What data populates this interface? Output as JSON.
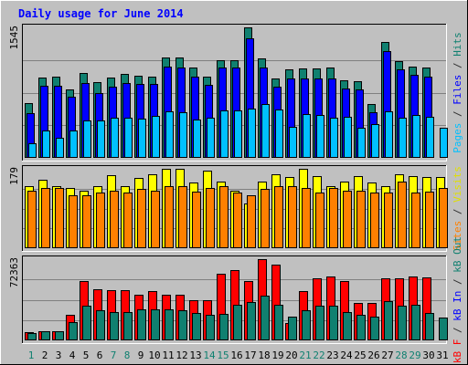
{
  "chart_data": {
    "type": "bar",
    "title": "Daily usage for June 2014",
    "categories": [
      "1",
      "2",
      "3",
      "4",
      "5",
      "6",
      "7",
      "8",
      "9",
      "10",
      "11",
      "12",
      "13",
      "14",
      "15",
      "16",
      "17",
      "18",
      "19",
      "20",
      "21",
      "22",
      "23",
      "24",
      "25",
      "26",
      "27",
      "28",
      "29",
      "30",
      "31"
    ],
    "weekend_categories": [
      "1",
      "7",
      "8",
      "14",
      "15",
      "21",
      "22",
      "28",
      "29"
    ],
    "panels": [
      {
        "id": "hits-files-pages",
        "ymax_label": "1545",
        "ymax": 1545,
        "side_label": [
          {
            "text": "Pages",
            "color": "#00c0ff"
          },
          {
            "text": " / ",
            "color": "#303030"
          },
          {
            "text": "Files",
            "color": "#0000ff"
          },
          {
            "text": " / ",
            "color": "#303030"
          },
          {
            "text": "Hits",
            "color": "#108070"
          }
        ],
        "series": [
          {
            "name": "Hits",
            "color": "#108070",
            "values": [
              650,
              955,
              960,
              810,
              1000,
              895,
              950,
              995,
              975,
              965,
              1185,
              1185,
              1070,
              960,
              1160,
              1160,
              1545,
              1180,
              945,
              1045,
              1055,
              1055,
              1065,
              915,
              905,
              635,
              1375,
              1145,
              1085,
              1065,
              0
            ]
          },
          {
            "name": "Files",
            "color": "#0000ff",
            "values": [
              530,
              855,
              855,
              725,
              890,
              770,
              845,
              890,
              875,
              875,
              1085,
              1070,
              960,
              865,
              1070,
              1070,
              1410,
              1070,
              845,
              935,
              935,
              935,
              945,
              820,
              810,
              535,
              1265,
              1045,
              985,
              960,
              0
            ]
          },
          {
            "name": "Pages",
            "color": "#00c0ff",
            "values": [
              175,
              320,
              240,
              320,
              445,
              440,
              470,
              475,
              460,
              500,
              555,
              545,
              450,
              470,
              560,
              560,
              580,
              635,
              570,
              370,
              520,
              510,
              480,
              490,
              360,
              400,
              550,
              480,
              510,
              490,
              355
            ]
          }
        ]
      },
      {
        "id": "visits-sites",
        "ymax_label": "179",
        "ymax": 179,
        "side_label": [
          {
            "text": "Sites",
            "color": "#ff8000"
          },
          {
            "text": " / ",
            "color": "#303030"
          },
          {
            "text": "Visits",
            "color": "#e0e000"
          }
        ],
        "series": [
          {
            "name": "Visits",
            "color": "#ffff00",
            "values": [
              140,
              155,
              140,
              135,
              130,
              140,
              165,
              140,
              158,
              167,
              179,
              179,
              148,
              175,
              150,
              130,
              100,
              150,
              167,
              160,
              178,
              163,
              140,
              150,
              163,
              148,
              140,
              167,
              163,
              160,
              160
            ]
          },
          {
            "name": "Sites",
            "color": "#ff8000",
            "values": [
              130,
              135,
              135,
              120,
              120,
              125,
              130,
              125,
              133,
              130,
              140,
              140,
              128,
              135,
              139,
              125,
              120,
              133,
              140,
              140,
              135,
              125,
              135,
              130,
              130,
              125,
              125,
              150,
              125,
              128,
              135
            ]
          }
        ]
      },
      {
        "id": "kbytes",
        "ymax_label": "72363",
        "ymax": 72363,
        "side_label": [
          {
            "text": "kB F",
            "color": "#ff0000"
          },
          {
            "text": " / ",
            "color": "#303030"
          },
          {
            "text": "kB In",
            "color": "#0000ff"
          },
          {
            "text": " / ",
            "color": "#303030"
          },
          {
            "text": "kB Out",
            "color": "#108070"
          }
        ],
        "series": [
          {
            "name": "kB F",
            "color": "#ff0000",
            "values": [
              7000,
              8000,
              8000,
              23000,
              53000,
              45500,
              44500,
              44500,
              41000,
              44000,
              41000,
              40500,
              36000,
              35500,
              59000,
              62500,
              52500,
              72363,
              67500,
              15500,
              43500,
              55000,
              57000,
              52500,
              33000,
              33000,
              55000,
              55000,
              57000,
              56000,
              0
            ]
          },
          {
            "name": "kB Out",
            "color": "#108070",
            "values": [
              6500,
              8000,
              8000,
              16000,
              30500,
              27000,
              25500,
              25500,
              27500,
              27500,
              27500,
              26500,
              24500,
              22500,
              23500,
              31500,
              34500,
              39700,
              31500,
              21500,
              27000,
              30500,
              30500,
              25000,
              22500,
              21500,
              35000,
              31000,
              31500,
              24000,
              20000
            ]
          }
        ]
      }
    ],
    "legend": "right-vertical",
    "grid": true
  }
}
